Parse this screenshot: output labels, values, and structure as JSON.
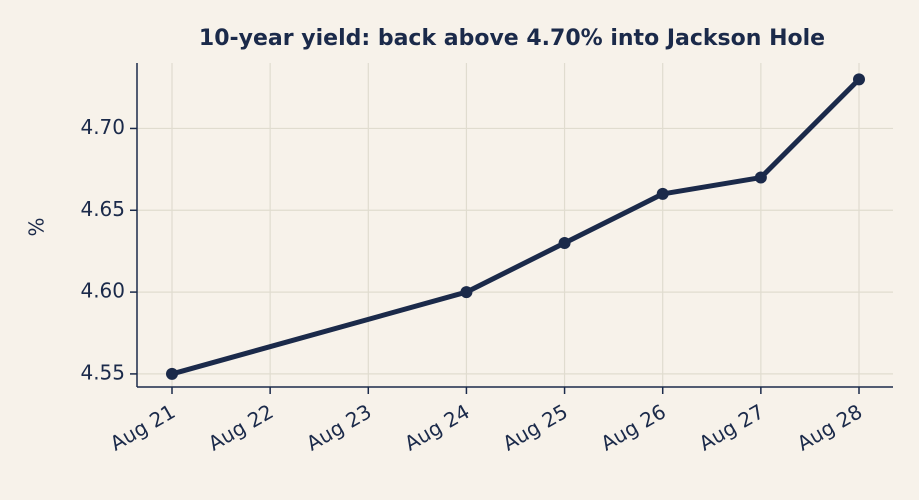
{
  "chart_data": {
    "type": "line",
    "title": "10-year yield: back above 4.70% into Jackson Hole",
    "y_label": "%",
    "x": [
      "Aug 21",
      "Aug 24",
      "Aug 25",
      "Aug 26",
      "Aug 27",
      "Aug 28"
    ],
    "values": [
      4.55,
      4.6,
      4.63,
      4.66,
      4.67,
      4.73
    ],
    "color": "#1b2a4a",
    "xticks": [
      "Aug 21",
      "Aug 22",
      "Aug 23",
      "Aug 24",
      "Aug 25",
      "Aug 26",
      "Aug 27",
      "Aug 28"
    ],
    "ylim": [
      4.542,
      4.74
    ],
    "yticks": [
      4.55,
      {
        "value": 4.6,
        "label": "4.60"
      },
      4.65,
      {
        "value": 4.7,
        "label": "4.70"
      }
    ],
    "grid": true
  }
}
